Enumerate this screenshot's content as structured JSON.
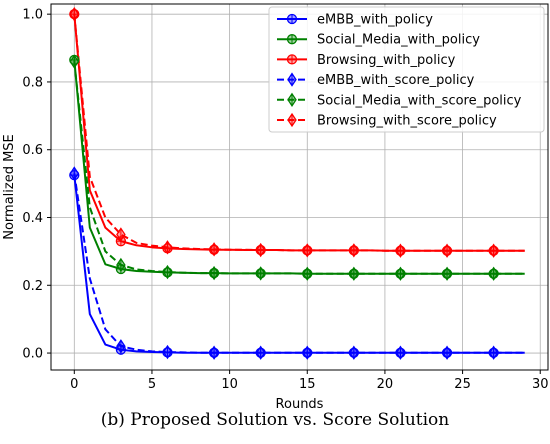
{
  "chart_data": {
    "type": "line",
    "title": "",
    "xlabel": "Rounds",
    "ylabel": "Normalized MSE",
    "xlim": [
      -1.5,
      30.5
    ],
    "ylim": [
      -0.05,
      1.03
    ],
    "xticks": [
      0,
      5,
      10,
      15,
      20,
      25,
      30
    ],
    "yticks": [
      0.0,
      0.2,
      0.4,
      0.6,
      0.8,
      1.0
    ],
    "xtick_labels": [
      "0",
      "5",
      "10",
      "15",
      "20",
      "25",
      "30"
    ],
    "ytick_labels": [
      "0.0",
      "0.2",
      "0.4",
      "0.6",
      "0.8",
      "1.0"
    ],
    "grid": true,
    "legend_position": "upper-right",
    "x": [
      0,
      1,
      2,
      3,
      4,
      5,
      6,
      7,
      8,
      9,
      10,
      11,
      12,
      13,
      14,
      15,
      16,
      17,
      18,
      19,
      20,
      21,
      22,
      23,
      24,
      25,
      26,
      27,
      28,
      29
    ],
    "marker_x": [
      0,
      3,
      6,
      9,
      12,
      15,
      18,
      21,
      24,
      27
    ],
    "series": [
      {
        "name": "eMBB_with_policy",
        "color": "#0000ff",
        "dash": "solid",
        "marker": "circle",
        "values": [
          0.525,
          0.115,
          0.025,
          0.01,
          0.005,
          0.003,
          0.002,
          0.001,
          0.001,
          0.001,
          0.001,
          0.001,
          0.001,
          0.001,
          0.001,
          0.001,
          0.001,
          0.001,
          0.001,
          0.001,
          0.001,
          0.001,
          0.001,
          0.001,
          0.001,
          0.001,
          0.001,
          0.001,
          0.001,
          0.001
        ]
      },
      {
        "name": "Social_Media_with_policy",
        "color": "#008000",
        "dash": "solid",
        "marker": "circle",
        "values": [
          0.865,
          0.37,
          0.262,
          0.248,
          0.242,
          0.24,
          0.238,
          0.237,
          0.236,
          0.236,
          0.235,
          0.235,
          0.235,
          0.235,
          0.235,
          0.234,
          0.234,
          0.234,
          0.234,
          0.234,
          0.234,
          0.234,
          0.234,
          0.234,
          0.234,
          0.234,
          0.234,
          0.234,
          0.234,
          0.234
        ]
      },
      {
        "name": "Browsing_with_policy",
        "color": "#ff0000",
        "dash": "solid",
        "marker": "circle",
        "values": [
          1.0,
          0.48,
          0.37,
          0.33,
          0.318,
          0.312,
          0.309,
          0.307,
          0.306,
          0.305,
          0.305,
          0.304,
          0.304,
          0.304,
          0.303,
          0.303,
          0.303,
          0.303,
          0.303,
          0.303,
          0.302,
          0.302,
          0.302,
          0.302,
          0.302,
          0.302,
          0.302,
          0.302,
          0.302,
          0.302
        ]
      },
      {
        "name": "eMBB_with_score_policy",
        "color": "#0000ff",
        "dash": "dashed",
        "marker": "diamond",
        "values": [
          0.53,
          0.22,
          0.07,
          0.02,
          0.01,
          0.005,
          0.003,
          0.002,
          0.001,
          0.001,
          0.001,
          0.001,
          0.001,
          0.001,
          0.001,
          0.001,
          0.001,
          0.001,
          0.001,
          0.001,
          0.001,
          0.001,
          0.001,
          0.001,
          0.001,
          0.001,
          0.001,
          0.001,
          0.001,
          0.001
        ]
      },
      {
        "name": "Social_Media_with_score_policy",
        "color": "#008000",
        "dash": "dashed",
        "marker": "diamond",
        "values": [
          0.86,
          0.43,
          0.3,
          0.26,
          0.247,
          0.242,
          0.239,
          0.237,
          0.236,
          0.236,
          0.235,
          0.235,
          0.235,
          0.235,
          0.235,
          0.234,
          0.234,
          0.234,
          0.234,
          0.234,
          0.234,
          0.234,
          0.234,
          0.234,
          0.234,
          0.234,
          0.234,
          0.234,
          0.234,
          0.234
        ]
      },
      {
        "name": "Browsing_with_score_policy",
        "color": "#ff0000",
        "dash": "dashed",
        "marker": "diamond",
        "values": [
          1.0,
          0.52,
          0.4,
          0.35,
          0.325,
          0.317,
          0.312,
          0.309,
          0.307,
          0.306,
          0.305,
          0.305,
          0.304,
          0.304,
          0.303,
          0.303,
          0.303,
          0.303,
          0.303,
          0.303,
          0.302,
          0.302,
          0.302,
          0.302,
          0.302,
          0.302,
          0.302,
          0.302,
          0.302,
          0.302
        ]
      }
    ]
  },
  "caption": "(b)  Proposed Solution vs. Score Solution"
}
